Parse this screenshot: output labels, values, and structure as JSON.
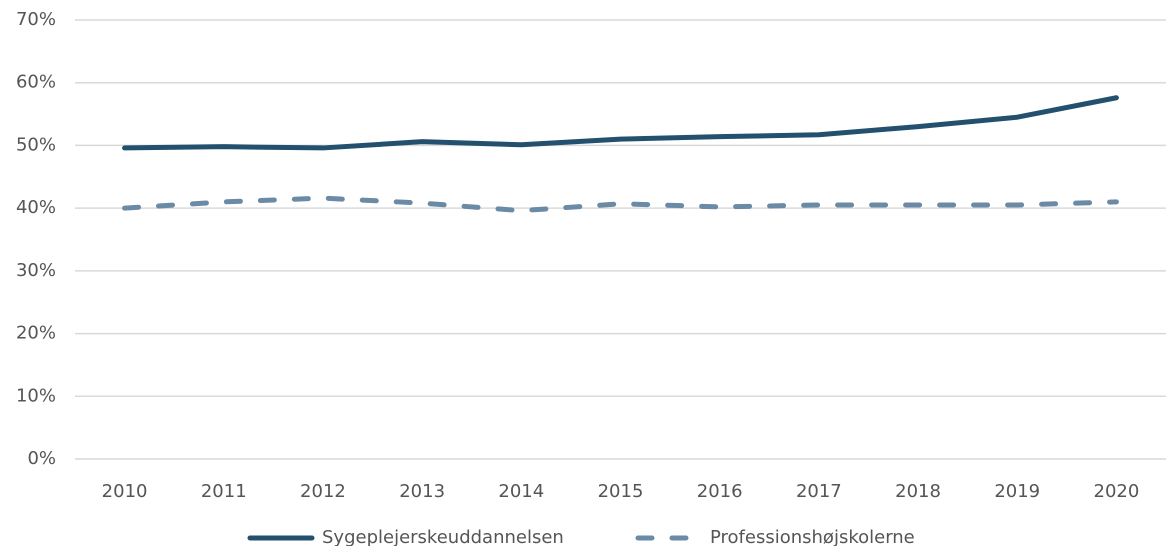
{
  "chart_data": {
    "type": "line",
    "categories": [
      "2010",
      "2011",
      "2012",
      "2013",
      "2014",
      "2015",
      "2016",
      "2017",
      "2018",
      "2019",
      "2020"
    ],
    "series": [
      {
        "name": "Sygeplejerskeuddannelsen",
        "color": "#24506f",
        "dash": false,
        "values": [
          49.6,
          49.8,
          49.6,
          50.6,
          50.1,
          51.0,
          51.4,
          51.7,
          53.0,
          54.5,
          57.6
        ]
      },
      {
        "name": "Professionshøjskolerne",
        "color": "#6a8aa5",
        "dash": true,
        "values": [
          40.0,
          41.0,
          41.6,
          40.8,
          39.6,
          40.7,
          40.2,
          40.5,
          40.5,
          40.5,
          41.0
        ]
      }
    ],
    "ylim": [
      0,
      70
    ],
    "yticks": [
      {
        "value": 0,
        "label": "0%"
      },
      {
        "value": 10,
        "label": "10%"
      },
      {
        "value": 20,
        "label": "20%"
      },
      {
        "value": 30,
        "label": "30%"
      },
      {
        "value": 40,
        "label": "40%"
      },
      {
        "value": 50,
        "label": "50%"
      },
      {
        "value": 60,
        "label": "60%"
      },
      {
        "value": 70,
        "label": "70%"
      }
    ],
    "grid": true,
    "legend": "bottom"
  }
}
